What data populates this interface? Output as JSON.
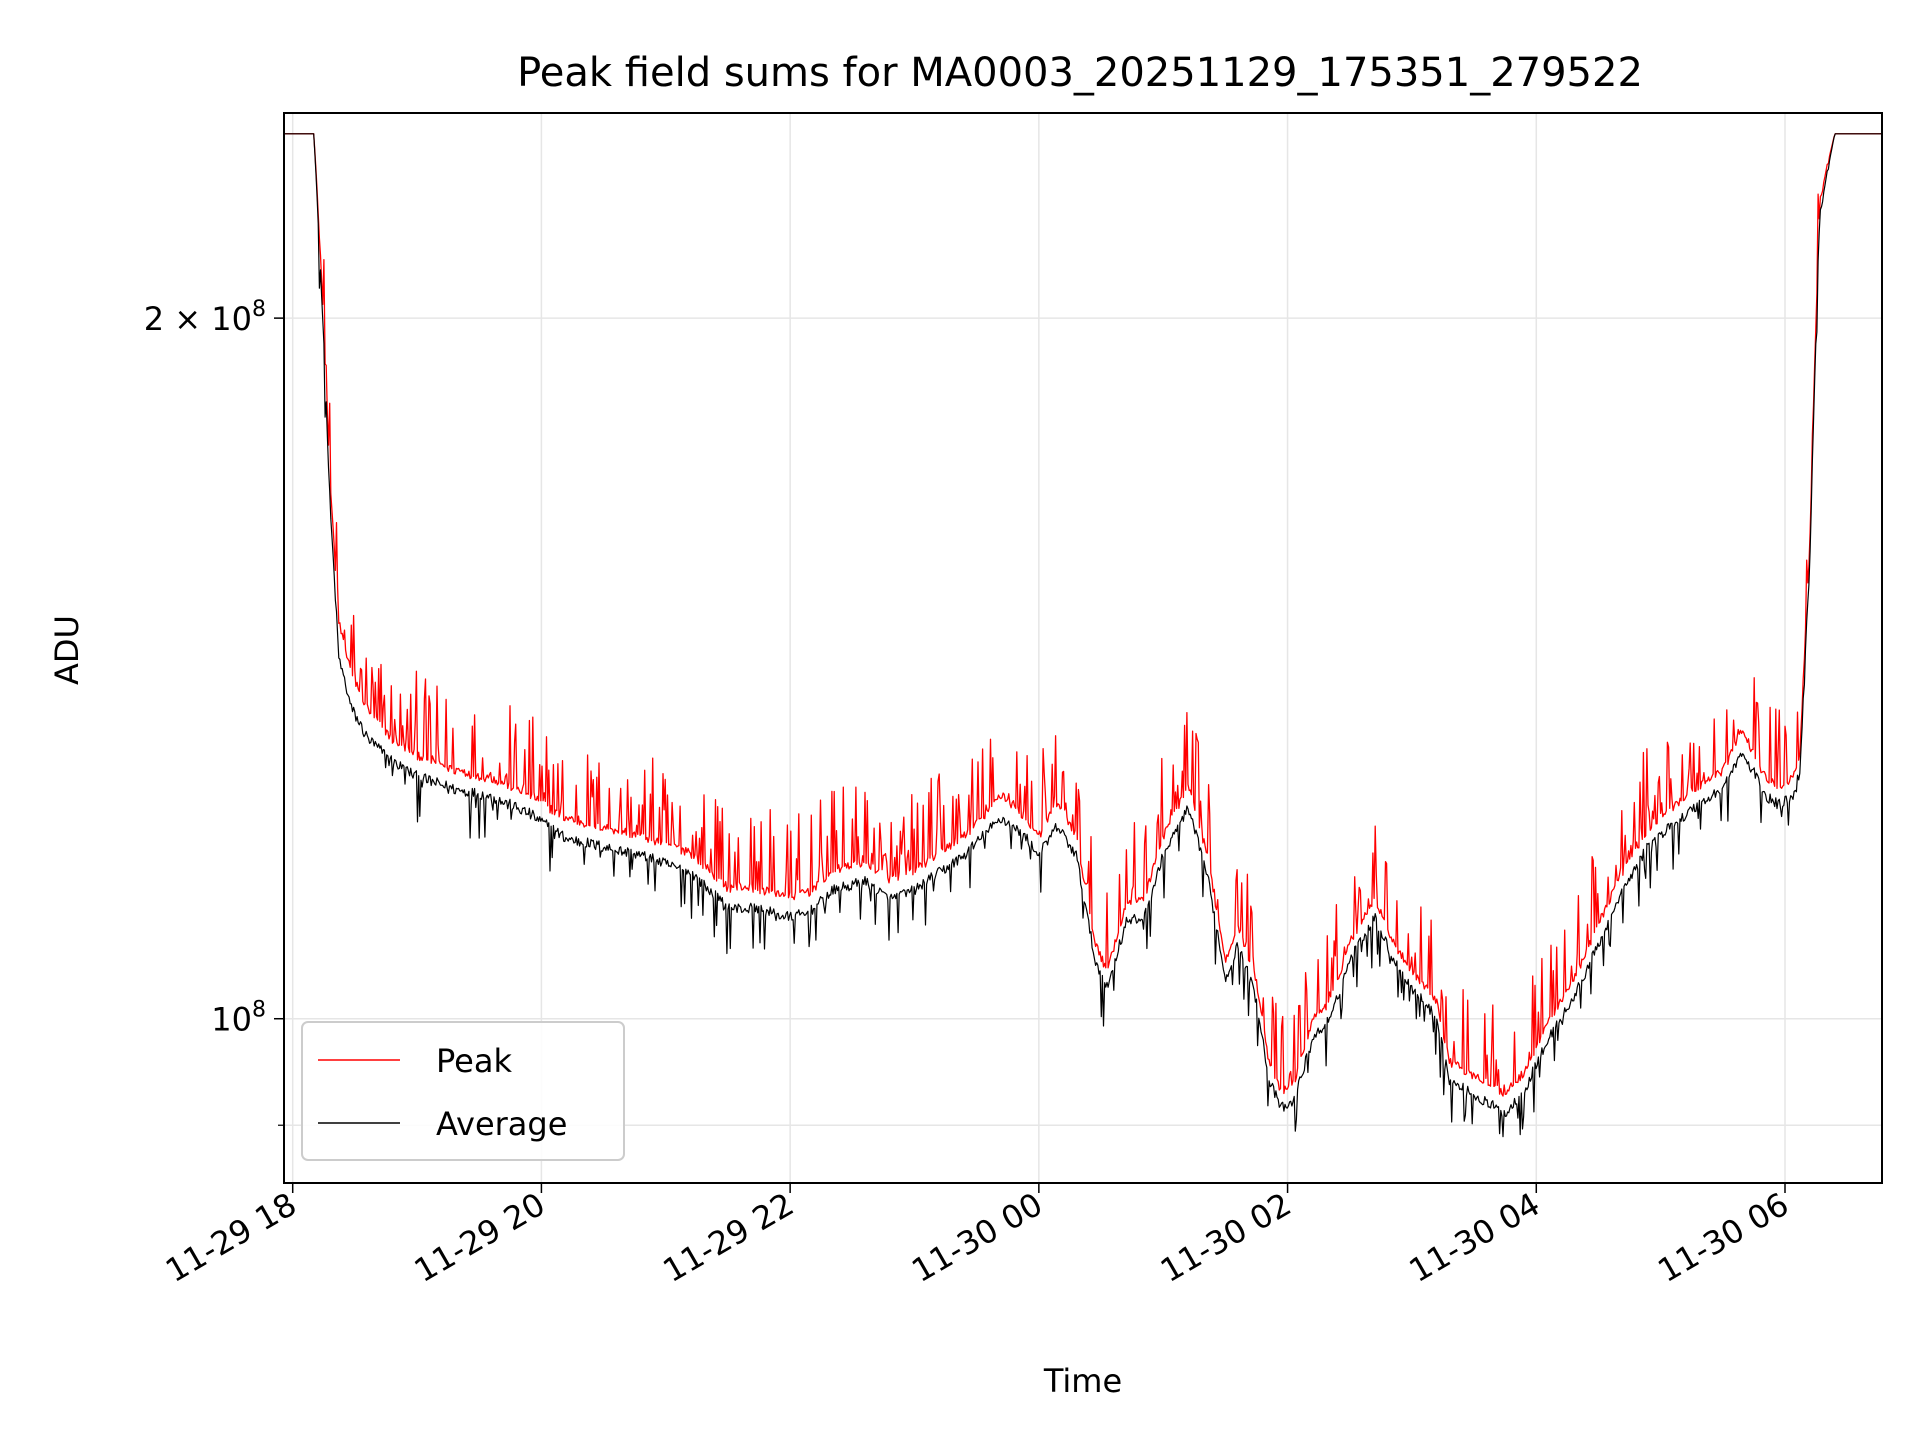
{
  "chart_data": {
    "type": "line",
    "title": "Peak field sums for MA0003_20251129_175351_279522",
    "xlabel": "Time",
    "ylabel": "ADU",
    "yscale": "log",
    "ylim": [
      85000000,
      245000000
    ],
    "xlim_hours": [
      17.93,
      30.78
    ],
    "grid": true,
    "legend_position": "lower-left",
    "x_ticks": [
      {
        "label": "11-29 18",
        "hour": 18
      },
      {
        "label": "11-29 20",
        "hour": 20
      },
      {
        "label": "11-29 22",
        "hour": 22
      },
      {
        "label": "11-30 00",
        "hour": 24
      },
      {
        "label": "11-30 02",
        "hour": 26
      },
      {
        "label": "11-30 04",
        "hour": 28
      },
      {
        "label": "11-30 06",
        "hour": 30
      }
    ],
    "y_ticks": [
      {
        "mantissa": "2",
        "times": "×",
        "base": "10",
        "exp": "8",
        "value": 200000000
      },
      {
        "mantissa": "",
        "times": "",
        "base": "10",
        "exp": "8",
        "value": 100000000
      }
    ],
    "y_minor_ticks": [
      90000000
    ],
    "series": [
      {
        "name": "Peak",
        "color": "#ff0000",
        "x_hours": [
          17.93,
          18.17,
          18.22,
          18.3,
          18.37,
          18.47,
          18.6,
          18.8,
          19.0,
          19.3,
          19.6,
          19.9,
          20.2,
          20.5,
          20.8,
          21.0,
          21.2,
          21.5,
          21.7,
          22.0,
          22.15,
          22.35,
          22.6,
          22.8,
          23.0,
          23.2,
          23.4,
          23.6,
          23.7,
          23.9,
          24.0,
          24.15,
          24.3,
          24.45,
          24.55,
          24.7,
          24.85,
          25.0,
          25.2,
          25.35,
          25.5,
          25.6,
          25.75,
          25.85,
          25.95,
          26.05,
          26.2,
          26.35,
          26.5,
          26.7,
          26.85,
          27.0,
          27.2,
          27.3,
          27.45,
          27.6,
          27.75,
          27.9,
          28.1,
          28.3,
          28.5,
          28.7,
          28.9,
          29.05,
          29.3,
          29.5,
          29.65,
          29.75,
          29.85,
          29.95,
          30.05,
          30.12,
          30.2,
          30.28,
          30.4,
          30.78
        ],
        "values": [
          240000000,
          240000000,
          215000000,
          170000000,
          148000000,
          141000000,
          136000000,
          132000000,
          130000000,
          128000000,
          127000000,
          125000000,
          122000000,
          121000000,
          120000000,
          119000000,
          118000000,
          114000000,
          114000000,
          113000000,
          113500000,
          116000000,
          117000000,
          115000000,
          116000000,
          118000000,
          120000000,
          123000000,
          125000000,
          122000000,
          120000000,
          124000000,
          120000000,
          108000000,
          105000000,
          112000000,
          113000000,
          120000000,
          126000000,
          118000000,
          106000000,
          110000000,
          104000000,
          96000000,
          93000000,
          94000000,
          100000000,
          102000000,
          108000000,
          113000000,
          108000000,
          105000000,
          102000000,
          96000000,
          95000000,
          94000000,
          93000000,
          95000000,
          100000000,
          104000000,
          110000000,
          116000000,
          121000000,
          123000000,
          126000000,
          128000000,
          133000000,
          130000000,
          127000000,
          126000000,
          127000000,
          130000000,
          160000000,
          225000000,
          240000000,
          240000000
        ]
      },
      {
        "name": "Average",
        "color": "#000000",
        "x_hours": [
          17.93,
          18.17,
          18.22,
          18.3,
          18.37,
          18.47,
          18.6,
          18.8,
          19.0,
          19.3,
          19.6,
          19.9,
          20.2,
          20.5,
          20.8,
          21.0,
          21.2,
          21.5,
          21.7,
          22.0,
          22.15,
          22.35,
          22.6,
          22.8,
          23.0,
          23.2,
          23.4,
          23.6,
          23.7,
          23.9,
          24.0,
          24.15,
          24.3,
          24.45,
          24.55,
          24.7,
          24.85,
          25.0,
          25.2,
          25.35,
          25.5,
          25.6,
          25.75,
          25.85,
          25.95,
          26.05,
          26.2,
          26.35,
          26.5,
          26.7,
          26.85,
          27.0,
          27.2,
          27.3,
          27.45,
          27.6,
          27.75,
          27.9,
          28.1,
          28.3,
          28.5,
          28.7,
          28.9,
          29.05,
          29.3,
          29.5,
          29.65,
          29.75,
          29.85,
          29.95,
          30.05,
          30.12,
          30.2,
          30.28,
          30.4,
          30.78
        ],
        "values": [
          240000000,
          240000000,
          212000000,
          166000000,
          143000000,
          136000000,
          132000000,
          129000000,
          127000000,
          125500000,
          124500000,
          122500000,
          119500000,
          118500000,
          117500000,
          116500000,
          115500000,
          111500000,
          111500000,
          110500000,
          111000000,
          113500000,
          114500000,
          112500000,
          113500000,
          115500000,
          117500000,
          120500000,
          122000000,
          119500000,
          117500000,
          121000000,
          117500000,
          106000000,
          103000000,
          110000000,
          110500000,
          117500000,
          123000000,
          115500000,
          104000000,
          107500000,
          102000000,
          94000000,
          91500000,
          92000000,
          98000000,
          100000000,
          106000000,
          110500000,
          106000000,
          103000000,
          100000000,
          94000000,
          93000000,
          92000000,
          91000000,
          93000000,
          98000000,
          102000000,
          107500000,
          113500000,
          118500000,
          120500000,
          123500000,
          125500000,
          130000000,
          127500000,
          124500000,
          123500000,
          124500000,
          127500000,
          157000000,
          222000000,
          240000000,
          240000000
        ]
      }
    ]
  }
}
